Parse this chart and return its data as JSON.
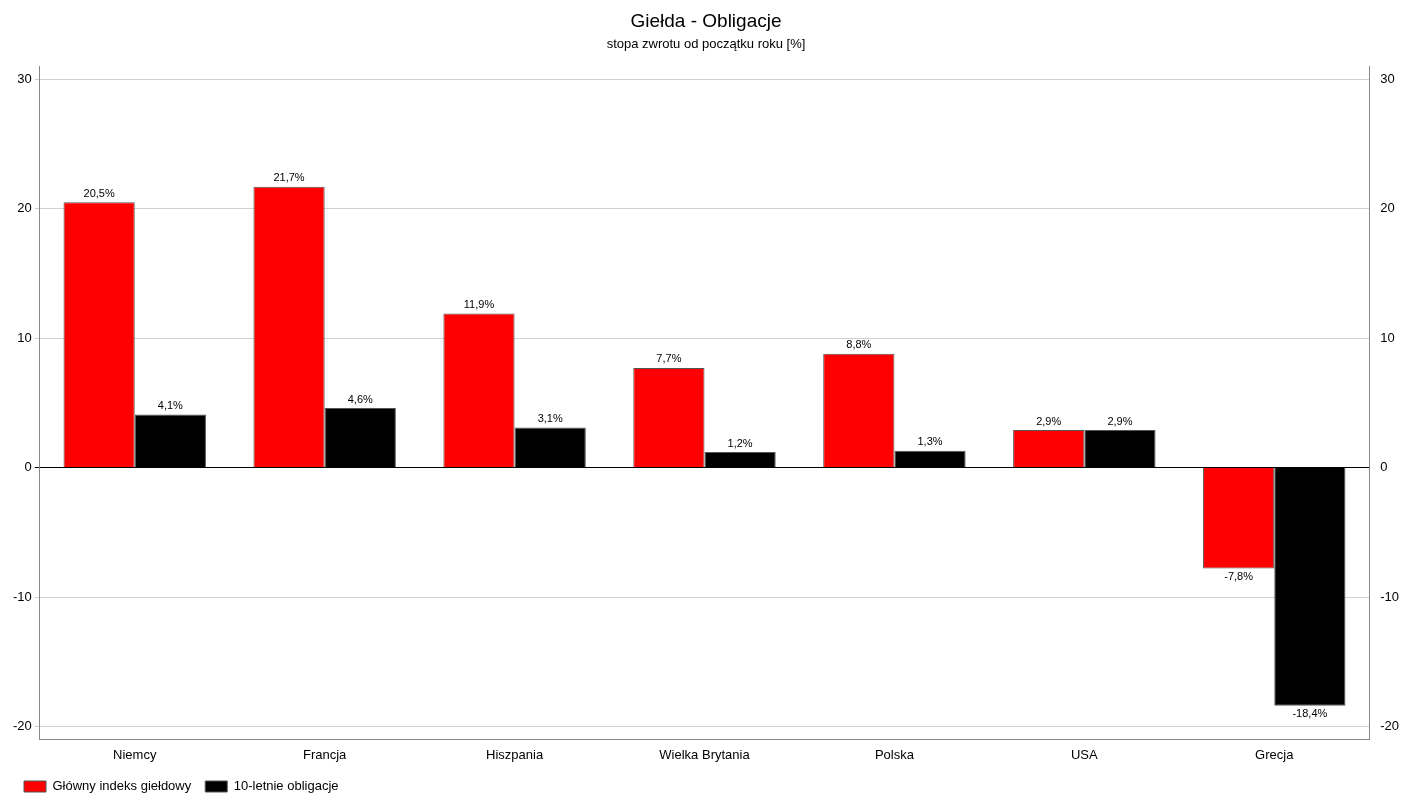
{
  "chart_data": {
    "type": "bar",
    "title": "Giełda - Obligacje",
    "subtitle": "stopa zwrotu od początku roku [%]",
    "categories": [
      "Niemcy",
      "Francja",
      "Hiszpania",
      "Wielka Brytania",
      "Polska",
      "USA",
      "Grecja"
    ],
    "series": [
      {
        "name": "Główny indeks giełdowy",
        "color": "#ff0000",
        "values": [
          20.5,
          21.7,
          11.9,
          7.7,
          8.8,
          2.9,
          -7.8
        ],
        "value_labels": [
          "20,5%",
          "21,7%",
          "11,9%",
          "7,7%",
          "8,8%",
          "2,9%",
          "-7,8%"
        ]
      },
      {
        "name": "10-letnie obligacje",
        "color": "#000000",
        "values": [
          4.1,
          4.6,
          3.1,
          1.2,
          1.3,
          2.9,
          -18.4
        ],
        "value_labels": [
          "4,1%",
          "4,6%",
          "3,1%",
          "1,2%",
          "1,3%",
          "2,9%",
          "-18,4%"
        ]
      }
    ],
    "ylim": [
      -21,
      31
    ],
    "yticks": [
      -20,
      -10,
      0,
      10,
      20,
      30
    ],
    "y2lim": [
      -21,
      31
    ],
    "y2ticks": [
      -20,
      -10,
      0,
      10,
      20,
      30
    ],
    "grid": "y",
    "legend": "bottom left"
  }
}
